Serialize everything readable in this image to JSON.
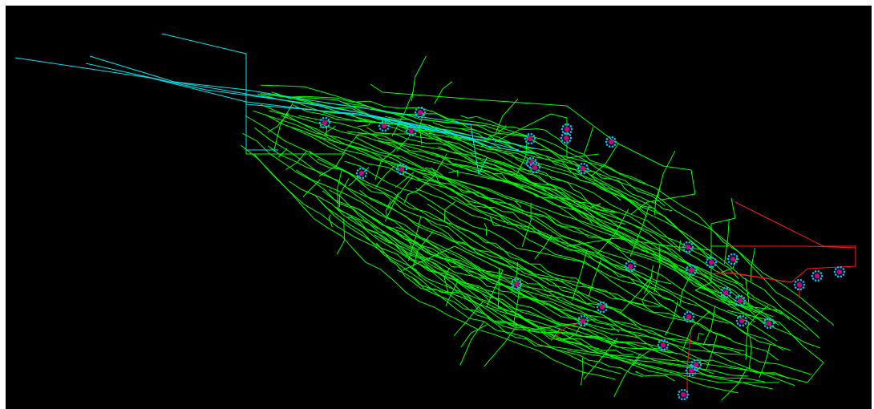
{
  "colors": {
    "background": "#000000",
    "frame": "#ffffff",
    "tunnel": "#00ff00",
    "airway": "#00e5ee",
    "route": "#ff1a1a",
    "node_ring": "#00bfff",
    "node_core": "#c2008a"
  },
  "icons": {
    "node": "station-marker-icon"
  }
}
